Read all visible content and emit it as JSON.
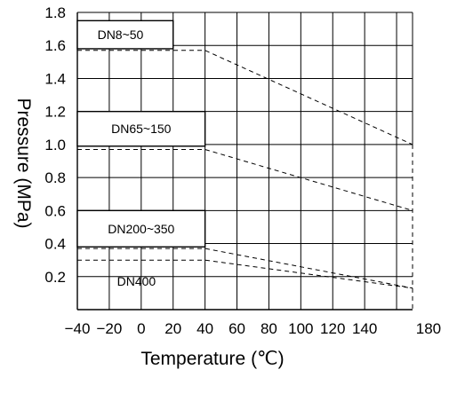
{
  "chart_data": {
    "type": "line",
    "xlabel": "Temperature (℃)",
    "ylabel": "Pressure (MPa)",
    "xlim": [
      -40,
      180
    ],
    "ylim": [
      0,
      1.8
    ],
    "x_ticks": [
      "−40",
      "−20",
      "0",
      "20",
      "40",
      "60",
      "80",
      "100",
      "120",
      "140",
      "180"
    ],
    "y_ticks": [
      "0.2",
      "0.4",
      "0.6",
      "0.8",
      "1.0",
      "1.2",
      "1.4",
      "1.6",
      "1.8"
    ],
    "grid": true,
    "series": [
      {
        "name": "DN8~50",
        "x": [
          -40,
          40,
          170
        ],
        "y": [
          1.57,
          1.57,
          1.0
        ]
      },
      {
        "name": "DN65~150",
        "x": [
          -40,
          40,
          170
        ],
        "y": [
          0.97,
          0.97,
          0.6
        ]
      },
      {
        "name": "DN200~350",
        "x": [
          -40,
          40,
          170
        ],
        "y": [
          0.37,
          0.37,
          0.13
        ]
      },
      {
        "name": "DN400",
        "x": [
          -40,
          40,
          170
        ],
        "y": [
          0.3,
          0.3,
          0.13
        ]
      }
    ],
    "limit_line": {
      "x": 170,
      "y": [
        0,
        1.0
      ]
    },
    "grid_right_edge_x": 170
  }
}
